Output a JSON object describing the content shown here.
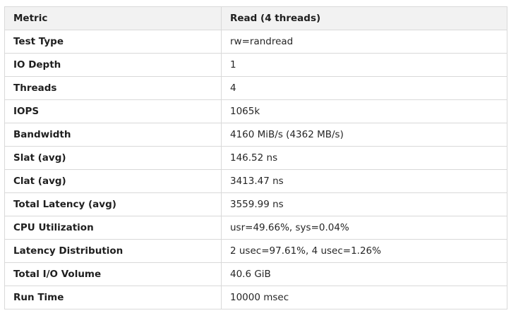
{
  "table": {
    "headers": [
      "Metric",
      "Read (4 threads)"
    ],
    "rows": [
      [
        "Test Type",
        "rw=randread"
      ],
      [
        "IO Depth",
        "1"
      ],
      [
        "Threads",
        "4"
      ],
      [
        "IOPS",
        "1065k"
      ],
      [
        "Bandwidth",
        "4160 MiB/s (4362 MB/s)"
      ],
      [
        "Slat (avg)",
        "146.52 ns"
      ],
      [
        "Clat (avg)",
        "3413.47 ns"
      ],
      [
        "Total Latency (avg)",
        "3559.99 ns"
      ],
      [
        "CPU Utilization",
        "usr=49.66%, sys=0.04%"
      ],
      [
        "Latency Distribution",
        "2 usec=97.61%, 4 usec=1.26%"
      ],
      [
        "Total I/O Volume",
        "40.6 GiB"
      ],
      [
        "Run Time",
        "10000 msec"
      ]
    ]
  }
}
